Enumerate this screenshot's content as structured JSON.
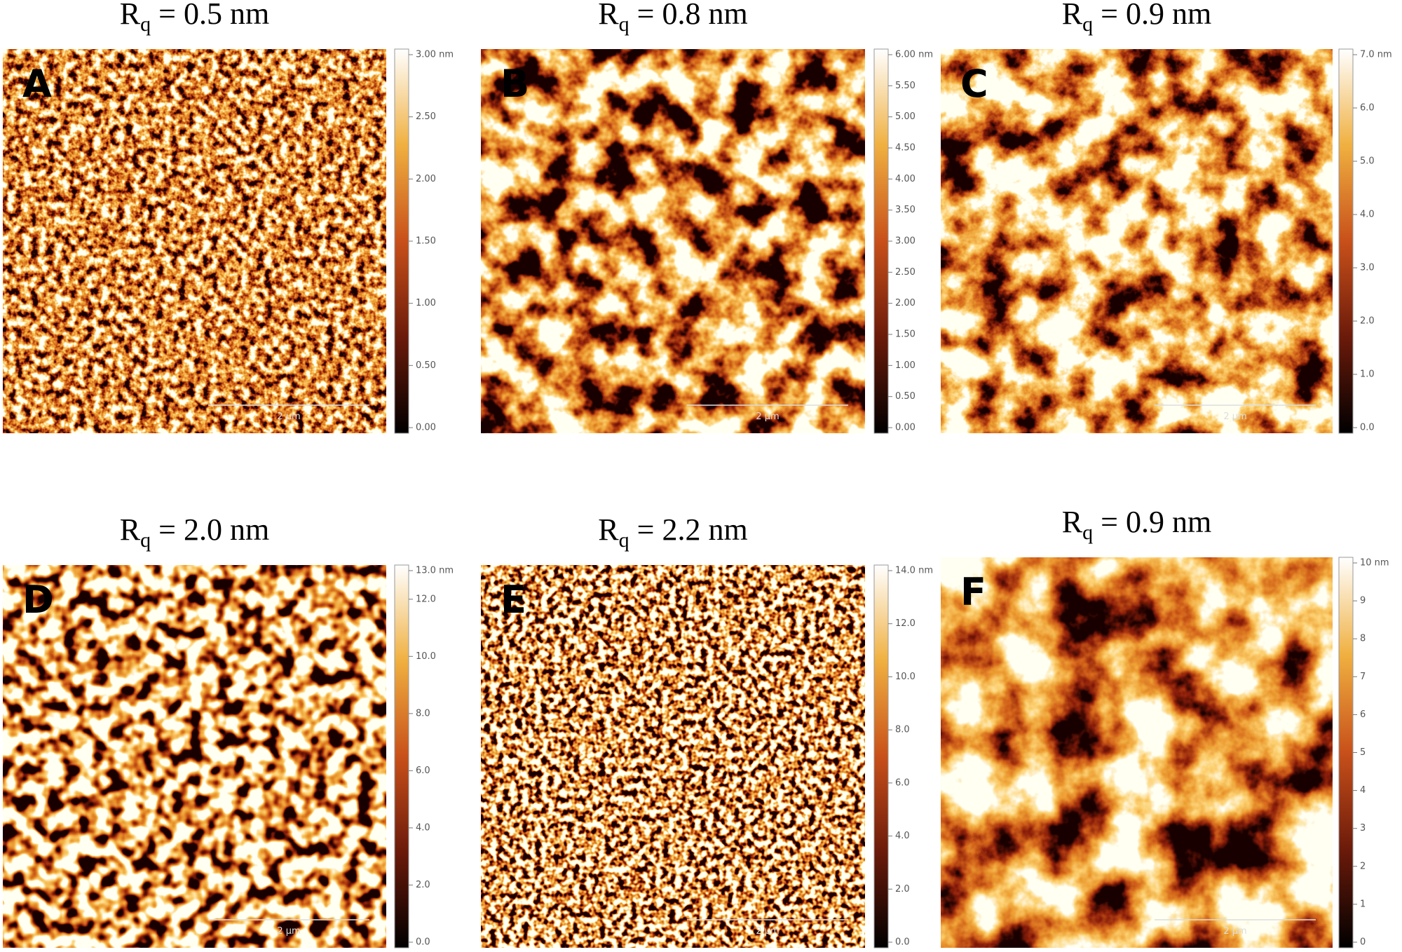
{
  "panels": [
    {
      "label": "A",
      "title": {
        "symbol": "R",
        "subscript": "q",
        "value": " = 0.5 nm"
      },
      "colorbar": [
        "3.00 nm",
        "2.50",
        "2.00",
        "1.50",
        "1.00",
        "0.50",
        "0.00"
      ],
      "scale_bar": "2 µm"
    },
    {
      "label": "B",
      "title": {
        "symbol": "R",
        "subscript": "q",
        "value": " = 0.8 nm"
      },
      "colorbar": [
        "6.00 nm",
        "5.50",
        "5.00",
        "4.50",
        "4.00",
        "3.50",
        "3.00",
        "2.50",
        "2.00",
        "1.50",
        "1.00",
        "0.50",
        "0.00"
      ],
      "scale_bar": "2 µm"
    },
    {
      "label": "C",
      "title": {
        "symbol": "R",
        "subscript": "q",
        "value": " = 0.9 nm"
      },
      "colorbar": [
        "7.0 nm",
        "6.0",
        "5.0",
        "4.0",
        "3.0",
        "2.0",
        "1.0",
        "0.0"
      ],
      "scale_bar": "2 µm"
    },
    {
      "label": "D",
      "title": {
        "symbol": "R",
        "subscript": "q",
        "value": " = 2.0 nm"
      },
      "colorbar": [
        "13.0 nm",
        "12.0",
        "10.0",
        "8.0",
        "6.0",
        "4.0",
        "2.0",
        "0.0"
      ],
      "scale_bar": "2 µm"
    },
    {
      "label": "E",
      "title": {
        "symbol": "R",
        "subscript": "q",
        "value": " = 2.2 nm"
      },
      "colorbar": [
        "14.0 nm",
        "12.0",
        "10.0",
        "8.0",
        "6.0",
        "4.0",
        "2.0",
        "0.0"
      ],
      "scale_bar": "2 µm"
    },
    {
      "label": "F",
      "title": {
        "symbol": "R",
        "subscript": "q",
        "value": " = 0.9 nm"
      },
      "colorbar": [
        "10 nm",
        "9",
        "8",
        "7",
        "6",
        "5",
        "4",
        "3",
        "2",
        "1",
        "0"
      ],
      "scale_bar": "2 µm"
    }
  ]
}
